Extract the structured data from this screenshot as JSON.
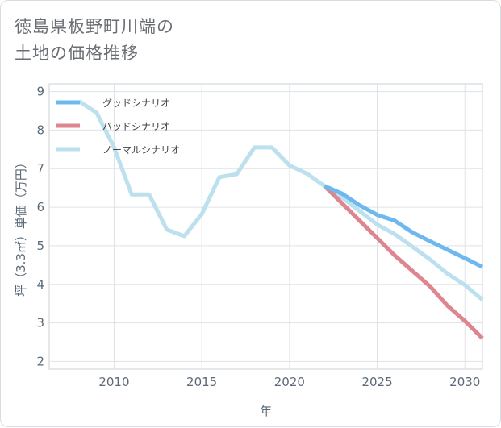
{
  "page": {
    "title": "徳島県板野町川端の\n土地の価格推移"
  },
  "chart_data": {
    "type": "line",
    "title": "徳島県板野町川端の土地の価格推移",
    "xlabel": "年",
    "ylabel": "坪（3.3㎡）単価（万円）",
    "xlim": [
      2006.3,
      2031
    ],
    "ylim": [
      1.8,
      9.2
    ],
    "xticks": [
      2010,
      2015,
      2020,
      2025,
      2030
    ],
    "yticks": [
      2,
      3,
      4,
      5,
      6,
      7,
      8,
      9
    ],
    "grid": true,
    "legend_position": "top-left",
    "series": [
      {
        "name": "グッドシナリオ",
        "color": "#6cb8ef",
        "x": [
          2022,
          2023,
          2024,
          2025,
          2026,
          2027,
          2028,
          2029,
          2030,
          2031
        ],
        "y": [
          6.55,
          6.35,
          6.05,
          5.8,
          5.65,
          5.35,
          5.12,
          4.9,
          4.68,
          4.45
        ]
      },
      {
        "name": "バッドシナリオ",
        "color": "#dd868f",
        "x": [
          2022,
          2023,
          2024,
          2025,
          2026,
          2027,
          2028,
          2029,
          2030,
          2031
        ],
        "y": [
          6.55,
          6.1,
          5.65,
          5.2,
          4.75,
          4.35,
          3.95,
          3.45,
          3.05,
          2.6
        ]
      },
      {
        "name": "ノーマルシナリオ",
        "color": "#bde0ef",
        "x": [
          2008,
          2009,
          2010,
          2011,
          2012,
          2013,
          2014,
          2015,
          2016,
          2017,
          2018,
          2019,
          2020,
          2021,
          2022,
          2023,
          2024,
          2025,
          2026,
          2027,
          2028,
          2029,
          2030,
          2031
        ],
        "y": [
          8.75,
          8.45,
          7.55,
          6.33,
          6.33,
          5.42,
          5.25,
          5.82,
          6.78,
          6.86,
          7.55,
          7.55,
          7.08,
          6.87,
          6.55,
          6.25,
          5.9,
          5.55,
          5.3,
          4.98,
          4.65,
          4.28,
          3.98,
          3.6
        ]
      }
    ]
  }
}
